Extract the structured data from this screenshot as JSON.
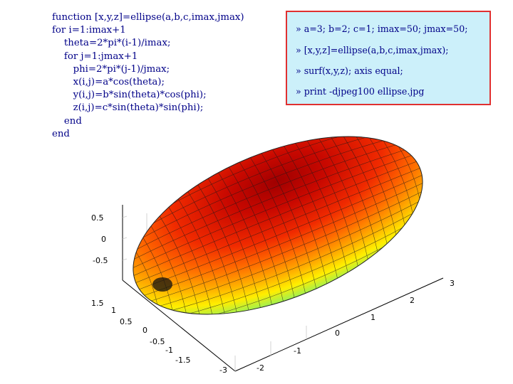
{
  "code_listing": {
    "lines": [
      "function [x,y,z]=ellipse(a,b,c,imax,jmax)",
      "for i=1:imax+1",
      "    theta=2*pi*(i-1)/imax;",
      "    for j=1:jmax+1",
      "       phi=2*pi*(j-1)/jmax;",
      "       x(i,j)=a*cos(theta);",
      "       y(i,j)=b*sin(theta)*cos(phi);",
      "       z(i,j)=c*sin(theta)*sin(phi);",
      "    end",
      "end"
    ]
  },
  "console": {
    "commands": [
      "» a=3; b=2; c=1; imax=50; jmax=50;",
      "» [x,y,z]=ellipse(a,b,c,imax,jmax);",
      "» surf(x,y,z); axis equal;",
      "» print -djpeg100 ellipse.jpg"
    ]
  },
  "plot": {
    "z_ticks": [
      "0.5",
      "0",
      "-0.5"
    ],
    "y_ticks": [
      "1.5",
      "1",
      "0.5",
      "0",
      "-0.5",
      "-1",
      "-1.5"
    ],
    "x_ticks": [
      "3",
      "2",
      "1",
      "0",
      "-1",
      "-2",
      "-3"
    ],
    "colormap": "jet",
    "axis_equal": true,
    "grid": true,
    "colors": {
      "code_text": "#000088",
      "console_bg": "#ccf0fa",
      "console_border": "#e03030"
    }
  }
}
